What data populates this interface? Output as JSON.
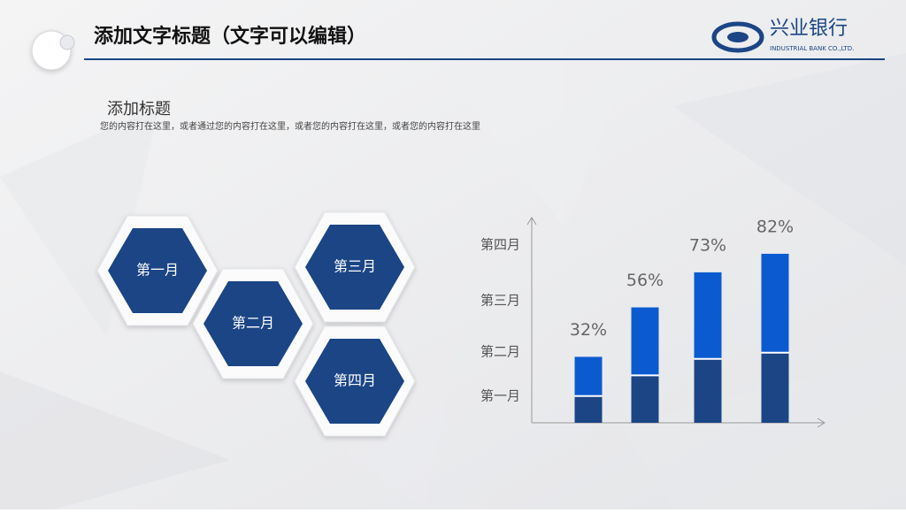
{
  "header": {
    "title": "添加文字标题（文字可以编辑）",
    "logo_name": "兴业银行",
    "logo_sub": "INDUSTRIAL BANK CO.,LTD."
  },
  "section": {
    "title": "添加标题",
    "body": "您的内容打在这里，或者通过您的内容打在这里，或者您的内容打在这里，或者您的内容打在这里"
  },
  "hexagons": [
    "第一月",
    "第二月",
    "第三月",
    "第四月"
  ],
  "chart_data": {
    "type": "bar",
    "y_labels": [
      "第一月",
      "第二月",
      "第三月",
      "第四月"
    ],
    "series": [
      {
        "color": "#1b4585",
        "values": [
          13,
          23,
          31,
          34
        ]
      },
      {
        "color": "#0c5ad0",
        "values": [
          19,
          33,
          42,
          48
        ]
      }
    ],
    "totals": [
      32,
      56,
      73,
      82
    ],
    "value_labels": [
      "32%",
      "56%",
      "73%",
      "82%"
    ],
    "ylim": [
      0,
      100
    ]
  }
}
